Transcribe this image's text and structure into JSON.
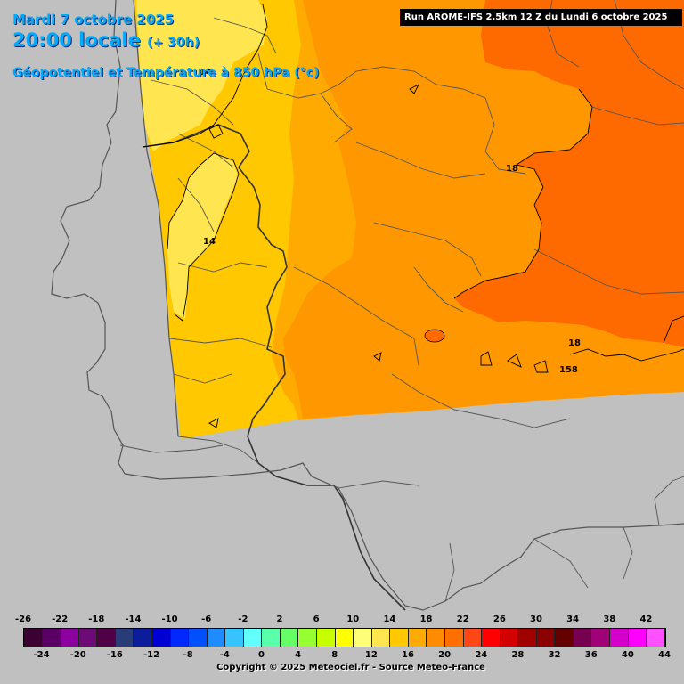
{
  "header": {
    "date": "Mardi 7 octobre 2025",
    "time": "20:00 locale",
    "offset": "(+ 30h)",
    "parameter": "Géopotentiel et Température à 850 hPa (°c)",
    "run": "Run AROME-IFS 2.5km 12 Z du Lundi 6 octobre 2025"
  },
  "map_labels": {
    "contour_14_a": "14",
    "contour_14_b": "14",
    "contour_18_a": "18",
    "contour_18_b": "18",
    "geopotential_158": "158"
  },
  "legend": {
    "top_labels": [
      "-26",
      "-22",
      "-18",
      "-14",
      "-10",
      "-6",
      "-2",
      "2",
      "6",
      "10",
      "14",
      "18",
      "22",
      "26",
      "30",
      "34",
      "38",
      "42"
    ],
    "bottom_labels": [
      "-24",
      "-20",
      "-16",
      "-12",
      "-8",
      "-4",
      "0",
      "4",
      "8",
      "12",
      "16",
      "20",
      "24",
      "28",
      "32",
      "36",
      "40",
      "44"
    ],
    "colors": [
      "#3c0032",
      "#5a0064",
      "#8c00a0",
      "#6e0a78",
      "#500046",
      "#283c78",
      "#0a1e9b",
      "#0000d2",
      "#0028ff",
      "#0050ff",
      "#1e8cff",
      "#37c3ff",
      "#64ffff",
      "#5affaa",
      "#64ff64",
      "#96ff32",
      "#c8ff00",
      "#ffff00",
      "#ffff78",
      "#ffe650",
      "#ffc800",
      "#ffaa00",
      "#ff8c00",
      "#ff6e00",
      "#ff4614",
      "#ff0000",
      "#d20000",
      "#a00000",
      "#8c0000",
      "#640000",
      "#780050",
      "#a00078",
      "#d200c8",
      "#ff00ff",
      "#ff50ff"
    ]
  },
  "copyright": "Copyright © 2025 Meteociel.fr - Source Meteo-France"
}
